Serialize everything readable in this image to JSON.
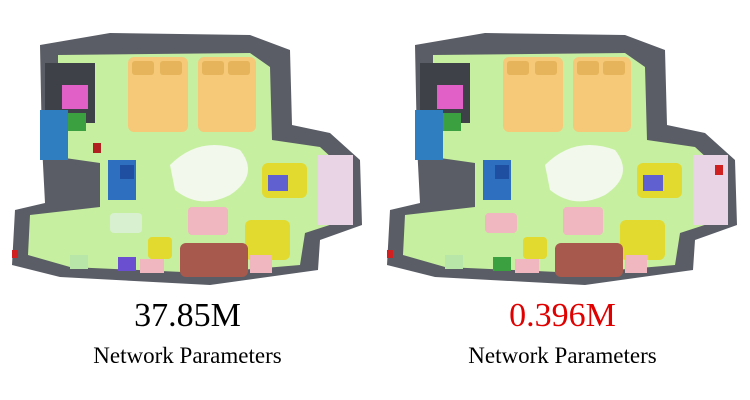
{
  "panels": [
    {
      "value": "37.85M",
      "value_color": "#000000",
      "caption": "Network Parameters",
      "scene": "3d-semantic-room-reconstruction"
    },
    {
      "value": "0.396M",
      "value_color": "#e00000",
      "caption": "Network Parameters",
      "scene": "3d-semantic-room-reconstruction"
    }
  ],
  "colors": {
    "floor": "#c6f0a0",
    "wall": "#4a4d55",
    "bed": "#f5c978",
    "sofa": "#a6594c",
    "chair": "#e2da2e",
    "table_pink": "#f0b7c0",
    "cabinet_blue": "#2f7fc0",
    "magenta": "#e060c8"
  }
}
